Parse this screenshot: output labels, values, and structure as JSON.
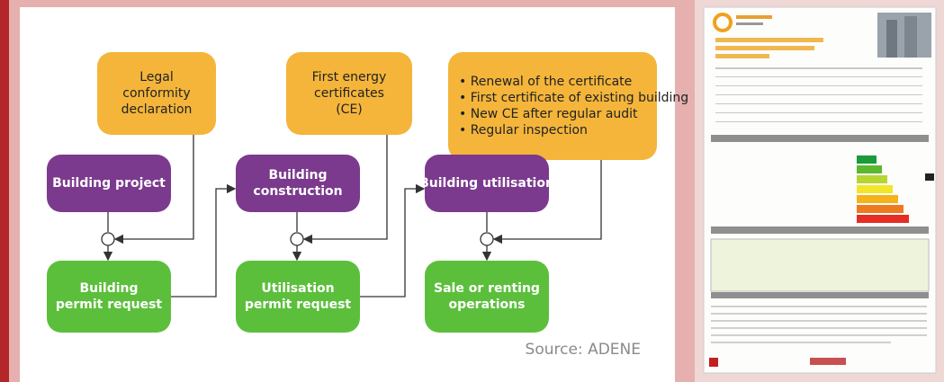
{
  "nodes": [
    {
      "lines": [
        "Legal",
        "conformity",
        "declaration"
      ]
    },
    {
      "lines": [
        "First energy",
        "certificates",
        "(CE)"
      ]
    },
    {
      "lines": [
        "• Renewal of the certificate",
        "• First certificate of existing building",
        "• New CE after regular audit",
        "• Regular inspection"
      ]
    },
    {
      "lines": [
        "Building project"
      ]
    },
    {
      "lines": [
        "Building",
        "construction"
      ]
    },
    {
      "lines": [
        "Building utilisation"
      ]
    },
    {
      "lines": [
        "Building",
        "permit request"
      ]
    },
    {
      "lines": [
        "Utilisation",
        "permit request"
      ]
    },
    {
      "lines": [
        "Sale or renting",
        "operations"
      ]
    }
  ],
  "source": "Source: ADENE"
}
